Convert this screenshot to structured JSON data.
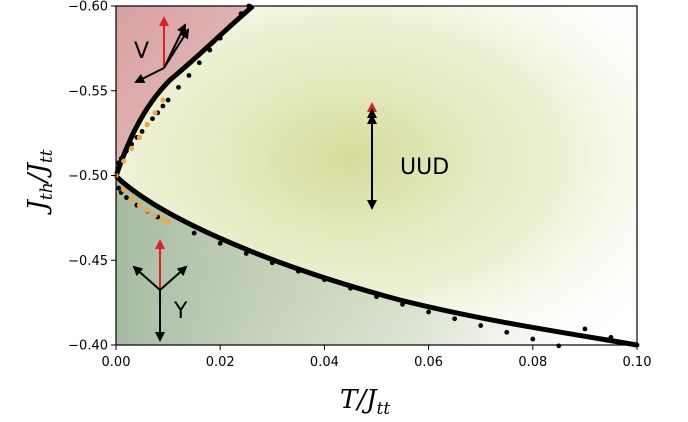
{
  "chart_data": {
    "type": "scatter",
    "title": "",
    "xlabel": {
      "main": "T/J",
      "sub": "tt"
    },
    "ylabel": {
      "main": "J",
      "sub1": "th",
      "sep": "/J",
      "sub2": "tt"
    },
    "xlim": [
      0.0,
      0.1
    ],
    "ylim": [
      -0.4,
      -0.6
    ],
    "x_ticks": [
      0.0,
      0.02,
      0.04,
      0.06,
      0.08,
      0.1
    ],
    "x_tick_labels": [
      "0.00",
      "0.02",
      "0.04",
      "0.06",
      "0.08",
      "0.10"
    ],
    "y_ticks": [
      -0.6,
      -0.55,
      -0.5,
      -0.45,
      -0.4
    ],
    "y_tick_labels": [
      "−0.60",
      "−0.55",
      "−0.50",
      "−0.45",
      "−0.40"
    ],
    "grid": false,
    "regions": [
      {
        "label": "V",
        "color": "#d9a0a0"
      },
      {
        "label": "UUD",
        "color": "#cfd88a"
      },
      {
        "label": "Y",
        "color": "#9fb49a"
      }
    ],
    "series": [
      {
        "style": "boundary-dots",
        "color": "#000000",
        "points": [
          [
            0.0,
            -0.5
          ],
          [
            0.0005,
            -0.5075
          ],
          [
            0.001,
            -0.51
          ],
          [
            0.002,
            -0.5145
          ],
          [
            0.003,
            -0.5185
          ],
          [
            0.004,
            -0.5225
          ],
          [
            0.005,
            -0.526
          ],
          [
            0.006,
            -0.53
          ],
          [
            0.007,
            -0.5335
          ],
          [
            0.008,
            -0.537
          ],
          [
            0.009,
            -0.541
          ],
          [
            0.01,
            -0.5445
          ],
          [
            0.012,
            -0.552
          ],
          [
            0.014,
            -0.559
          ],
          [
            0.016,
            -0.5665
          ],
          [
            0.018,
            -0.574
          ],
          [
            0.02,
            -0.581
          ],
          [
            0.022,
            -0.5885
          ],
          [
            0.024,
            -0.5955
          ],
          [
            0.0255,
            -0.6
          ],
          [
            0.0005,
            -0.4925
          ],
          [
            0.001,
            -0.49
          ],
          [
            0.002,
            -0.487
          ],
          [
            0.004,
            -0.4825
          ],
          [
            0.006,
            -0.479
          ],
          [
            0.008,
            -0.4755
          ],
          [
            0.01,
            -0.4725
          ],
          [
            0.015,
            -0.466
          ],
          [
            0.02,
            -0.46
          ],
          [
            0.025,
            -0.454
          ],
          [
            0.03,
            -0.4485
          ],
          [
            0.035,
            -0.4435
          ],
          [
            0.04,
            -0.4385
          ],
          [
            0.045,
            -0.4335
          ],
          [
            0.05,
            -0.4285
          ],
          [
            0.055,
            -0.424
          ],
          [
            0.06,
            -0.4195
          ],
          [
            0.065,
            -0.4155
          ],
          [
            0.07,
            -0.4115
          ],
          [
            0.075,
            -0.4075
          ],
          [
            0.08,
            -0.4035
          ],
          [
            0.085,
            -0.3995
          ],
          [
            0.09,
            -0.4095
          ],
          [
            0.095,
            -0.4045
          ],
          [
            0.1,
            -0.4
          ]
        ]
      },
      {
        "style": "dotted",
        "color": "#f4a640",
        "points": [
          [
            0.0,
            -0.5
          ],
          [
            0.0015,
            -0.5085
          ],
          [
            0.003,
            -0.516
          ],
          [
            0.0045,
            -0.5225
          ],
          [
            0.006,
            -0.53
          ],
          [
            0.0075,
            -0.537
          ],
          [
            0.009,
            -0.5445
          ],
          [
            0.0015,
            -0.4915
          ],
          [
            0.003,
            -0.4865
          ],
          [
            0.0045,
            -0.4825
          ],
          [
            0.006,
            -0.4795
          ],
          [
            0.0075,
            -0.4765
          ],
          [
            0.009,
            -0.474
          ],
          [
            0.01,
            -0.4725
          ]
        ]
      }
    ]
  }
}
